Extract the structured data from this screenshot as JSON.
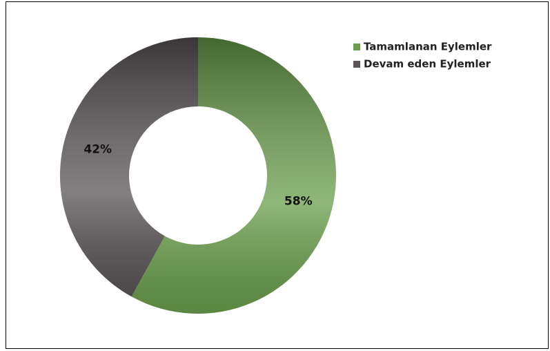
{
  "chart_data": {
    "type": "donut",
    "categories": [
      "Tamamlanan Eylemler",
      "Devam eden Eylemler"
    ],
    "values": [
      58,
      42
    ],
    "value_labels": [
      "58%",
      "42%"
    ],
    "colors": [
      "#6a9e4c",
      "#5a5455"
    ],
    "legend": "top-right"
  }
}
